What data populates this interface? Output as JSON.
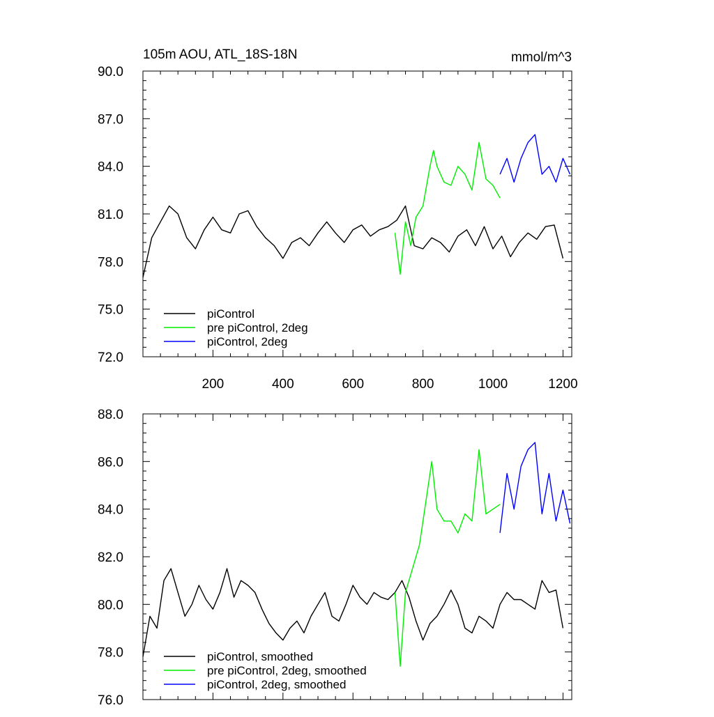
{
  "chart_data": [
    {
      "type": "line",
      "title": "105m AOU, ATL_18S-18N",
      "units": "mmol/m^3",
      "xlim": [
        0,
        1225
      ],
      "ylim": [
        72.0,
        90.0
      ],
      "x_major_ticks": [
        200,
        400,
        600,
        800,
        1000,
        1200
      ],
      "x_tick_labels": [
        "200",
        "400",
        "600",
        "800",
        "1000",
        "1200"
      ],
      "y_major_ticks": [
        72.0,
        75.0,
        78.0,
        81.0,
        84.0,
        87.0,
        90.0
      ],
      "y_tick_labels": [
        "72.0",
        "75.0",
        "78.0",
        "81.0",
        "84.0",
        "87.0",
        "90.0"
      ],
      "grid": false,
      "legend_position": "bottom-left",
      "series": [
        {
          "name": "piControl",
          "color": "#000000",
          "x": [
            0,
            25,
            50,
            75,
            100,
            125,
            150,
            175,
            200,
            225,
            250,
            275,
            300,
            325,
            350,
            375,
            400,
            425,
            450,
            475,
            500,
            525,
            550,
            575,
            600,
            625,
            650,
            675,
            700,
            725,
            750,
            775,
            800,
            825,
            850,
            875,
            900,
            925,
            950,
            975,
            1000,
            1025,
            1050,
            1075,
            1100,
            1125,
            1150,
            1175,
            1200
          ],
          "values": [
            77.0,
            79.5,
            80.5,
            81.5,
            81.0,
            79.5,
            78.8,
            80.0,
            80.8,
            80.0,
            79.8,
            81.0,
            81.2,
            80.2,
            79.5,
            79.0,
            78.2,
            79.2,
            79.5,
            79.0,
            79.8,
            80.5,
            79.8,
            79.2,
            80.0,
            80.3,
            79.6,
            80.0,
            80.2,
            80.6,
            81.5,
            79.0,
            78.8,
            79.5,
            79.2,
            78.6,
            79.6,
            80.0,
            79.0,
            80.2,
            78.8,
            79.6,
            78.3,
            79.2,
            79.8,
            79.4,
            80.2,
            80.3,
            78.2
          ]
        },
        {
          "name": "pre piControl, 2deg",
          "color": "#00ee00",
          "x": [
            720,
            735,
            750,
            765,
            780,
            800,
            820,
            830,
            840,
            860,
            880,
            900,
            920,
            940,
            960,
            980,
            1000,
            1020
          ],
          "values": [
            79.8,
            77.2,
            80.5,
            79.0,
            80.8,
            81.5,
            84.0,
            85.0,
            84.0,
            83.0,
            82.8,
            84.0,
            83.5,
            82.5,
            85.5,
            83.2,
            82.8,
            82.0
          ]
        },
        {
          "name": "piControl, 2deg",
          "color": "#0000ff",
          "x": [
            1020,
            1040,
            1060,
            1080,
            1100,
            1120,
            1140,
            1160,
            1180,
            1200,
            1220
          ],
          "values": [
            83.5,
            84.5,
            83.0,
            84.5,
            85.5,
            86.0,
            83.5,
            84.0,
            83.0,
            84.5,
            83.5
          ]
        }
      ]
    },
    {
      "type": "line",
      "title": "",
      "xlim": [
        0,
        1225
      ],
      "ylim": [
        76.0,
        88.0
      ],
      "x_major_ticks": [
        200,
        400,
        600,
        800,
        1000,
        1200
      ],
      "y_major_ticks": [
        76.0,
        78.0,
        80.0,
        82.0,
        84.0,
        86.0,
        88.0
      ],
      "y_tick_labels": [
        "76.0",
        "78.0",
        "80.0",
        "82.0",
        "84.0",
        "86.0",
        "88.0"
      ],
      "grid": false,
      "legend_position": "bottom-left",
      "series": [
        {
          "name": "piControl, smoothed",
          "color": "#000000",
          "x": [
            0,
            20,
            40,
            60,
            80,
            100,
            120,
            140,
            160,
            180,
            200,
            220,
            240,
            260,
            280,
            300,
            320,
            340,
            360,
            380,
            400,
            420,
            440,
            460,
            480,
            500,
            520,
            540,
            560,
            580,
            600,
            620,
            640,
            660,
            680,
            700,
            720,
            740,
            760,
            780,
            800,
            820,
            840,
            860,
            880,
            900,
            920,
            940,
            960,
            980,
            1000,
            1020,
            1040,
            1060,
            1080,
            1100,
            1120,
            1140,
            1160,
            1180,
            1200
          ],
          "values": [
            77.8,
            79.5,
            79.0,
            81.0,
            81.5,
            80.5,
            79.5,
            80.0,
            80.8,
            80.2,
            79.8,
            80.5,
            81.5,
            80.3,
            81.0,
            80.8,
            80.5,
            79.8,
            79.2,
            78.8,
            78.5,
            79.0,
            79.3,
            78.8,
            79.5,
            80.0,
            80.5,
            79.5,
            79.3,
            80.0,
            80.8,
            80.3,
            80.0,
            80.5,
            80.3,
            80.2,
            80.5,
            81.0,
            80.3,
            79.3,
            78.5,
            79.2,
            79.5,
            80.0,
            80.6,
            80.0,
            79.0,
            78.8,
            79.5,
            79.3,
            79.0,
            80.0,
            80.5,
            80.2,
            80.2,
            80.0,
            79.8,
            81.0,
            80.5,
            80.6,
            79.0
          ]
        },
        {
          "name": "pre piControl, 2deg, smoothed",
          "color": "#00ee00",
          "x": [
            720,
            735,
            750,
            770,
            790,
            810,
            825,
            840,
            860,
            880,
            900,
            920,
            940,
            960,
            980,
            1000,
            1020
          ],
          "values": [
            80.5,
            77.4,
            80.5,
            81.5,
            82.5,
            84.5,
            86.0,
            84.0,
            83.5,
            83.5,
            83.0,
            83.8,
            83.5,
            86.5,
            83.8,
            84.0,
            84.2
          ]
        },
        {
          "name": "piControl, 2deg, smoothed",
          "color": "#0000ff",
          "x": [
            1020,
            1040,
            1060,
            1080,
            1100,
            1120,
            1140,
            1160,
            1180,
            1200,
            1220
          ],
          "values": [
            83.0,
            85.5,
            84.0,
            85.8,
            86.5,
            86.8,
            83.8,
            85.5,
            83.5,
            84.8,
            83.4
          ]
        }
      ]
    }
  ]
}
